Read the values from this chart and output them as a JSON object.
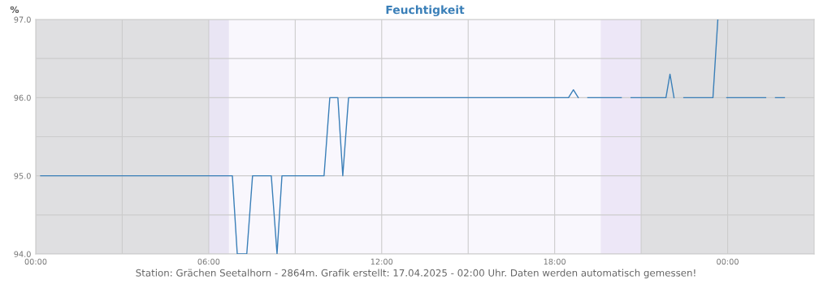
{
  "chart_data": {
    "type": "line",
    "title": "Feuchtigkeit",
    "ylabel": "%",
    "annotations": [
      "Station: Grächen Seetalhorn - 2864m. Grafik erstellt: 17.04.2025 - 02:00 Uhr. Daten werden automatisch gemessen!"
    ],
    "series": [
      {
        "color": "#3a7fb8",
        "x": [
          0.17,
          6.82,
          6.99,
          7.32,
          7.52,
          8.17,
          8.37,
          8.54,
          10.0,
          10.2,
          10.48,
          10.65,
          10.85,
          18.48,
          18.65,
          18.82,
          19.0,
          19.15,
          20.31,
          20.5,
          20.65,
          21.86,
          22.0,
          22.14,
          22.3,
          22.48,
          23.49,
          23.66,
          23.8,
          23.97,
          25.32,
          25.5,
          25.66,
          25.97
        ],
        "values": [
          95.0,
          95.0,
          94.0,
          94.0,
          95.0,
          95.0,
          94.0,
          95.0,
          95.0,
          96.0,
          96.0,
          95.0,
          96.0,
          96.0,
          96.1,
          96.0,
          null,
          96.0,
          96.0,
          null,
          96.0,
          96.0,
          96.3,
          96.0,
          null,
          96.0,
          96.0,
          97.0,
          null,
          96.0,
          96.0,
          null,
          96.0,
          96.0
        ]
      }
    ],
    "xlim": [
      0,
      27
    ],
    "xticks": [
      {
        "value": 0,
        "label": "00:00"
      },
      {
        "value": 3,
        "label": null
      },
      {
        "value": 6,
        "label": "06:00"
      },
      {
        "value": 9,
        "label": null
      },
      {
        "value": 12,
        "label": "12:00"
      },
      {
        "value": 15,
        "label": null
      },
      {
        "value": 18,
        "label": "18:00"
      },
      {
        "value": 21,
        "label": null
      },
      {
        "value": 24,
        "label": "00:00"
      }
    ],
    "ylim": [
      94,
      97
    ],
    "yticks": [
      {
        "value": 94,
        "label": "94.0"
      },
      {
        "value": 94.5,
        "label": null
      },
      {
        "value": 95,
        "label": "95.0"
      },
      {
        "value": 95.5,
        "label": null
      },
      {
        "value": 96,
        "label": "96.0"
      },
      {
        "value": 96.5,
        "label": null
      },
      {
        "value": 97,
        "label": "97.0"
      }
    ],
    "bands": [
      {
        "axis": "x",
        "from": 0,
        "to": 6,
        "color": "#dfdfe1"
      },
      {
        "axis": "x",
        "from": 6,
        "to": 6.7,
        "color": "#e9e5f4"
      },
      {
        "axis": "x",
        "from": 19.6,
        "to": 21,
        "color": "#ede7f7"
      },
      {
        "axis": "x",
        "from": 21,
        "to": 27,
        "color": "#dfdfe1"
      }
    ],
    "grid": true,
    "legend": false,
    "marker": "none",
    "line_style": "solid"
  }
}
